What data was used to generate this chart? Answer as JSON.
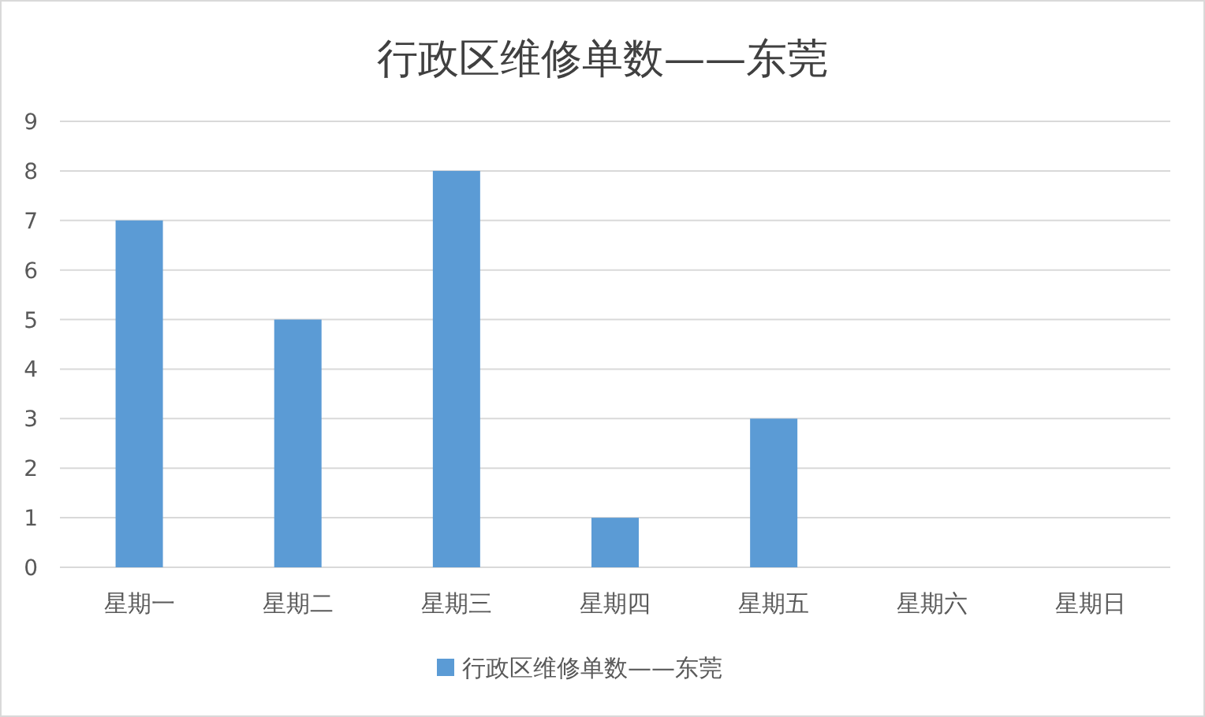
{
  "chart_data": {
    "type": "bar",
    "title": "行政区维修单数——东莞",
    "categories": [
      "星期一",
      "星期二",
      "星期三",
      "星期四",
      "星期五",
      "星期六",
      "星期日"
    ],
    "series": [
      {
        "name": "行政区维修单数——东莞",
        "color": "#5b9bd5",
        "values": [
          7,
          5,
          8,
          1,
          3,
          0,
          0
        ]
      }
    ],
    "ylim": [
      0,
      9
    ],
    "yticks": [
      0,
      1,
      2,
      3,
      4,
      5,
      6,
      7,
      8,
      9
    ],
    "grid": "y",
    "legend": "bottom"
  }
}
